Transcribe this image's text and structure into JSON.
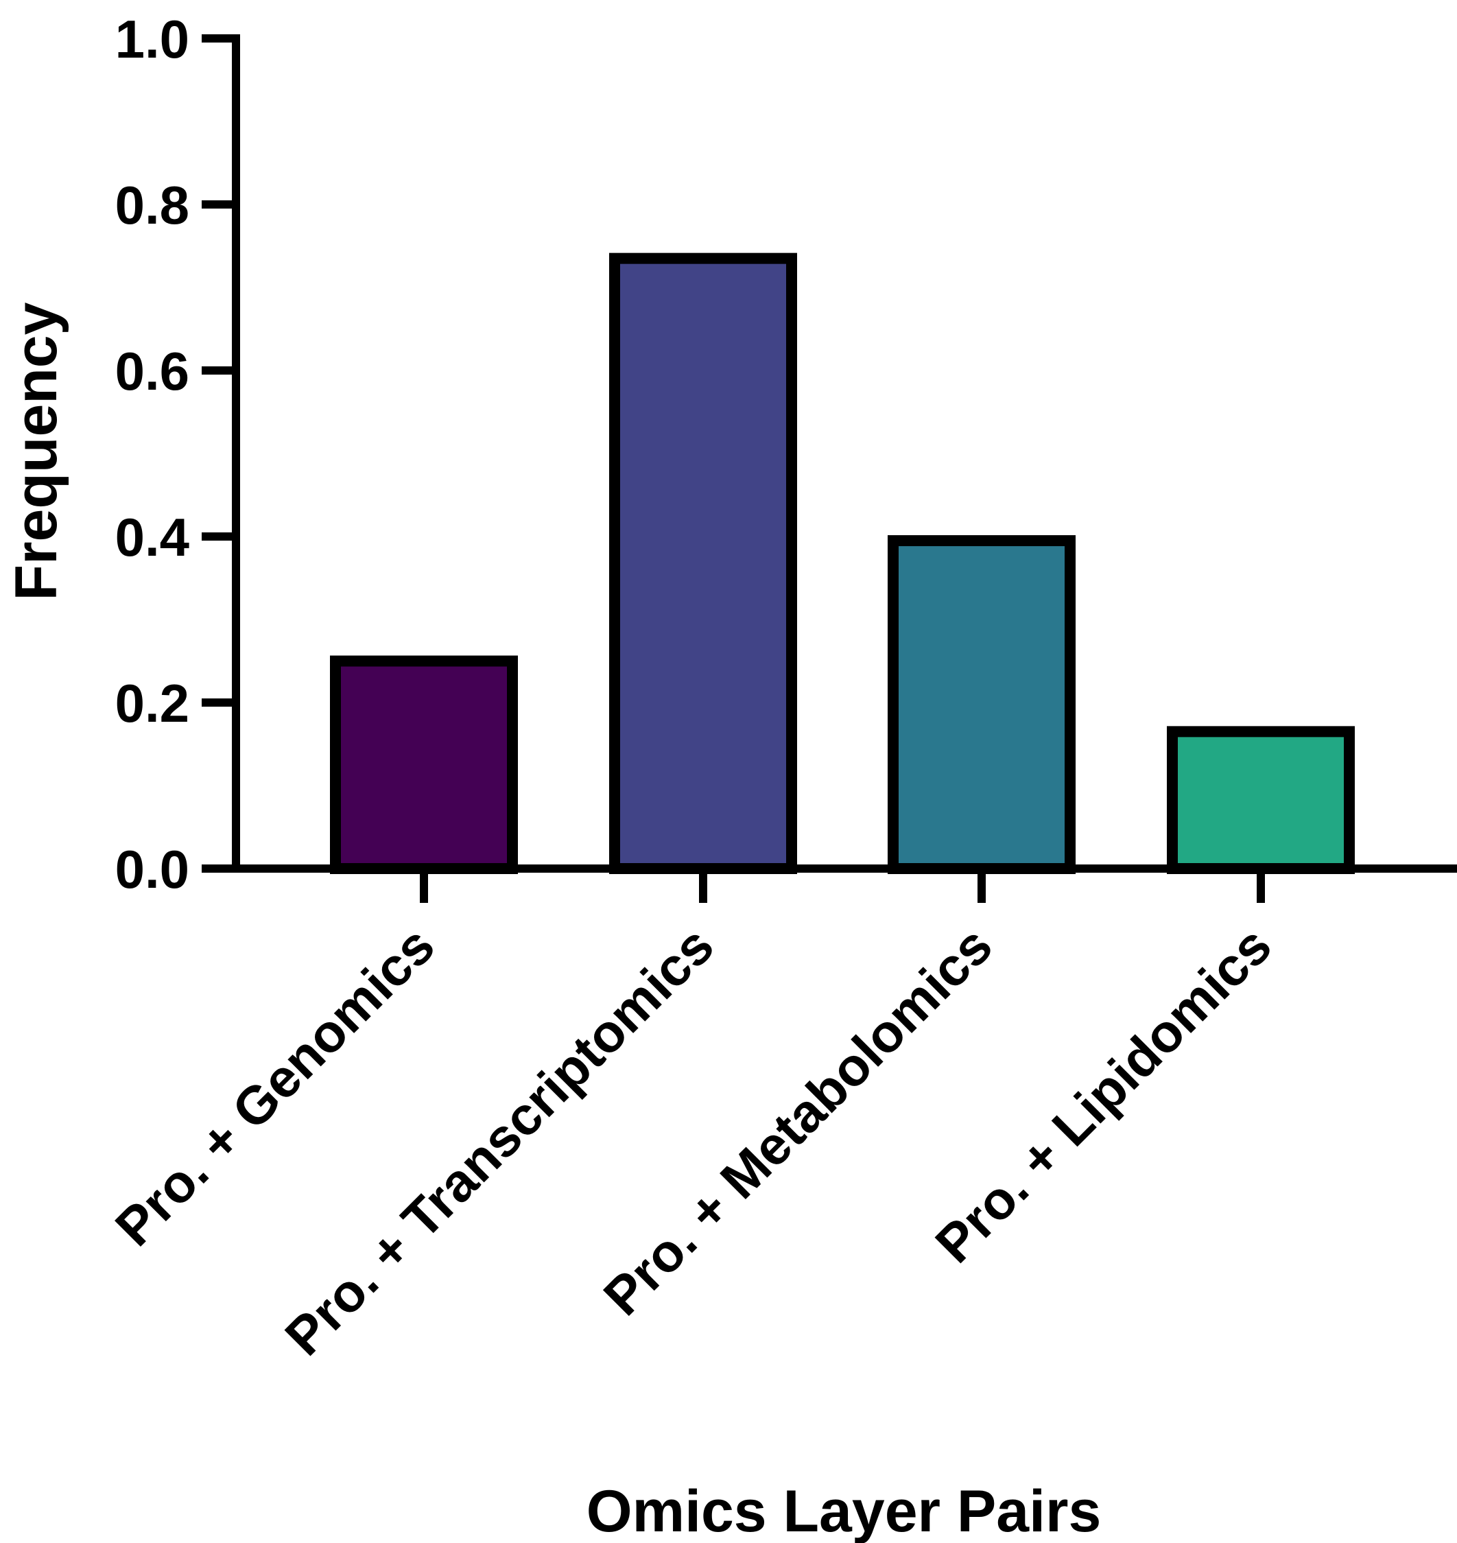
{
  "chart_data": {
    "type": "bar",
    "title": "",
    "xlabel": "Omics Layer Pairs",
    "ylabel": "Frequency",
    "ylim": [
      0,
      1.0
    ],
    "yticks": [
      "0.0",
      "0.2",
      "0.4",
      "0.6",
      "0.8",
      "1.0"
    ],
    "categories": [
      "Pro. + Genomics",
      "Pro. + Transcriptomics",
      "Pro. + Metabolomics",
      "Pro. + Lipidomics"
    ],
    "values": [
      0.25,
      0.735,
      0.395,
      0.165
    ],
    "colors": [
      "#440154",
      "#414487",
      "#2a788e",
      "#22a884"
    ],
    "grid": false,
    "legend": "none"
  }
}
